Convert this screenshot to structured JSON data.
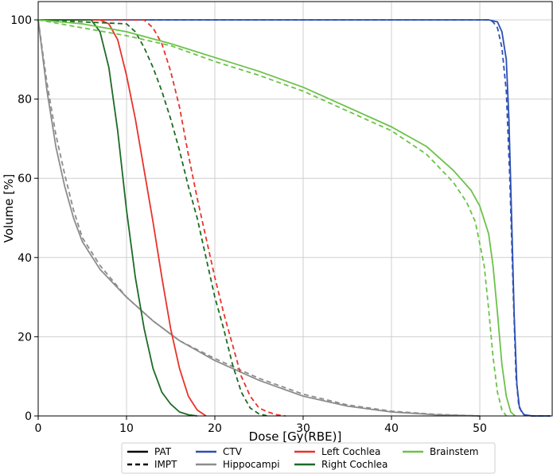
{
  "chart_data": {
    "type": "line",
    "title": "",
    "xlabel": "Dose [Gy(RBE)]",
    "ylabel": "Volume [%]",
    "xlim": [
      0,
      58
    ],
    "ylim": [
      0,
      100
    ],
    "xticks": [
      0,
      10,
      20,
      30,
      40,
      50
    ],
    "yticks": [
      0,
      20,
      40,
      60,
      80,
      100
    ],
    "grid": true,
    "legend_position": "bottom-center",
    "line_styles": [
      {
        "name": "PAT",
        "dash": "solid"
      },
      {
        "name": "IMPT",
        "dash": "dashed"
      }
    ],
    "structures": [
      {
        "name": "CTV",
        "color": "#2d4fb4"
      },
      {
        "name": "Hippocampi",
        "color": "#8c8c8c"
      },
      {
        "name": "Left Cochlea",
        "color": "#e8332a"
      },
      {
        "name": "Right Cochlea",
        "color": "#1d6b25"
      },
      {
        "name": "Brainstem",
        "color": "#6cc24a"
      }
    ],
    "series": [
      {
        "structure": "CTV",
        "style": "PAT",
        "x": [
          0,
          51,
          52,
          52.5,
          53,
          53.3,
          53.6,
          53.9,
          54.2,
          54.5,
          55,
          56,
          58
        ],
        "y": [
          100,
          100,
          99.5,
          97,
          90,
          75,
          50,
          25,
          8,
          2,
          0.3,
          0,
          0
        ]
      },
      {
        "structure": "CTV",
        "style": "IMPT",
        "x": [
          0,
          51,
          51.5,
          52,
          52.5,
          53,
          53.4,
          53.8,
          54.1,
          54.4,
          54.8,
          55.5,
          58
        ],
        "y": [
          100,
          100,
          99.5,
          98,
          93,
          82,
          60,
          30,
          10,
          3,
          0.5,
          0,
          0
        ]
      },
      {
        "structure": "Hippocampi",
        "style": "PAT",
        "x": [
          0,
          1,
          2,
          3,
          4,
          5,
          7,
          10,
          13,
          16,
          20,
          25,
          30,
          35,
          40,
          45,
          50
        ],
        "y": [
          100,
          82,
          68,
          58,
          50,
          44,
          37,
          30,
          24,
          19,
          14,
          9,
          5,
          2.5,
          1,
          0.3,
          0
        ]
      },
      {
        "structure": "Hippocampi",
        "style": "IMPT",
        "x": [
          0,
          1,
          2,
          3,
          4,
          5,
          7,
          10,
          13,
          16,
          20,
          25,
          30,
          35,
          40,
          45,
          50
        ],
        "y": [
          100,
          84,
          71,
          61,
          52,
          45,
          38,
          30,
          24,
          19,
          14.5,
          9.5,
          5.5,
          2.8,
          1.2,
          0.4,
          0
        ]
      },
      {
        "structure": "Left Cochlea",
        "style": "PAT",
        "x": [
          0,
          7,
          8,
          9,
          10,
          11,
          12,
          13,
          14,
          15,
          16,
          17,
          18,
          19
        ],
        "y": [
          100,
          100,
          99,
          95,
          86,
          75,
          62,
          49,
          35,
          22,
          12,
          5,
          1.5,
          0
        ]
      },
      {
        "structure": "Left Cochlea",
        "style": "IMPT",
        "x": [
          0,
          12,
          13,
          14,
          15,
          16,
          17,
          18,
          19,
          20,
          21,
          22,
          23,
          24,
          25,
          26,
          27,
          28
        ],
        "y": [
          100,
          100,
          98,
          94,
          87,
          78,
          66,
          55,
          45,
          35,
          26,
          18,
          10,
          5,
          2,
          1,
          0.3,
          0
        ]
      },
      {
        "structure": "Right Cochlea",
        "style": "PAT",
        "x": [
          0,
          6,
          7,
          8,
          9,
          10,
          11,
          12,
          13,
          14,
          15,
          16,
          17,
          18
        ],
        "y": [
          100,
          100,
          97,
          88,
          72,
          52,
          35,
          22,
          12,
          6,
          3,
          1,
          0.3,
          0
        ]
      },
      {
        "structure": "Right Cochlea",
        "style": "IMPT",
        "x": [
          0,
          10,
          11,
          12,
          13,
          14,
          15,
          16,
          17,
          18,
          19,
          20,
          21,
          22,
          23,
          24,
          25,
          26
        ],
        "y": [
          100,
          99,
          97,
          93,
          88,
          82,
          75,
          67,
          58,
          50,
          40,
          30,
          22,
          13,
          6,
          2,
          0.5,
          0
        ]
      },
      {
        "structure": "Brainstem",
        "style": "PAT",
        "x": [
          0,
          5,
          10,
          15,
          20,
          25,
          30,
          35,
          40,
          44,
          47,
          49,
          50,
          51,
          51.5,
          52,
          52.5,
          53,
          53.5,
          54
        ],
        "y": [
          100,
          99,
          97,
          94,
          90.5,
          87,
          83,
          78,
          73,
          68,
          62,
          57,
          53,
          46,
          38,
          26,
          13,
          5,
          1,
          0
        ]
      },
      {
        "structure": "Brainstem",
        "style": "IMPT",
        "x": [
          0,
          5,
          10,
          15,
          20,
          25,
          30,
          35,
          40,
          44,
          47,
          48.5,
          49.5,
          50.5,
          51,
          51.5,
          52,
          52.5,
          53
        ],
        "y": [
          100,
          98,
          96,
          93.5,
          89.5,
          86,
          82,
          77,
          72,
          66,
          59,
          54,
          49,
          38,
          27,
          15,
          6,
          1.5,
          0
        ]
      }
    ]
  }
}
